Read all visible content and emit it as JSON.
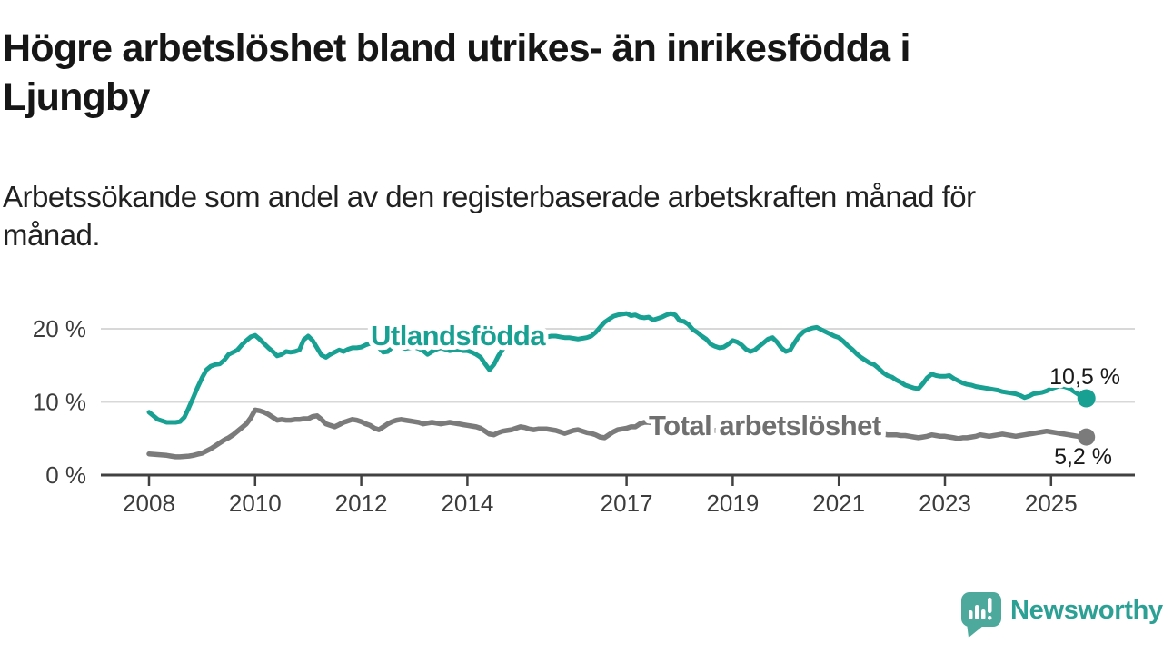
{
  "title": {
    "text": "Högre arbetslöshet bland utrikes- än inrikesfödda i Ljungby",
    "lines": [
      "Högre arbetslöshet bland utrikes- än inrikesfödda i",
      "Ljungby"
    ]
  },
  "subtitle": {
    "text": "Arbetssökande som andel av den registerbaserade arbetskraften månad för månad.",
    "lines": [
      "Arbetssökande som andel av den registerbaserade arbetskraften månad för",
      "månad."
    ]
  },
  "branding": {
    "name": "Newsworthy",
    "logo_color": "#4CA99C",
    "text_color": "#2CA094"
  },
  "chart_data": {
    "type": "line",
    "title": "Högre arbetslöshet bland utrikes- än inrikesfödda i Ljungby",
    "ylabel": "",
    "xlabel": "",
    "grid": "horizontal",
    "ylim": [
      0,
      22.5
    ],
    "x_range_years": [
      2008.0,
      2025.67
    ],
    "y_ticks": [
      {
        "value": 0,
        "label": "0 %"
      },
      {
        "value": 10,
        "label": "10 %"
      },
      {
        "value": 20,
        "label": "20 %"
      }
    ],
    "x_ticks": [
      {
        "year": 2008,
        "label": "2008"
      },
      {
        "year": 2010,
        "label": "2010"
      },
      {
        "year": 2012,
        "label": "2012"
      },
      {
        "year": 2014,
        "label": "2014"
      },
      {
        "year": 2017,
        "label": "2017"
      },
      {
        "year": 2019,
        "label": "2019"
      },
      {
        "year": 2021,
        "label": "2021"
      },
      {
        "year": 2023,
        "label": "2023"
      },
      {
        "year": 2025,
        "label": "2025"
      }
    ],
    "colors": {
      "grid": "#d8d8d8",
      "axis": "#414141"
    },
    "series": [
      {
        "name": "Utlandsfödda",
        "color": "#18A193",
        "end_label": "10,5 %",
        "end_value": 10.5,
        "start_year": 2008,
        "step_months": 1,
        "values": [
          8.6,
          8.1,
          7.6,
          7.4,
          7.2,
          7.2,
          7.2,
          7.3,
          7.9,
          9.2,
          10.6,
          12.0,
          13.3,
          14.4,
          14.9,
          15.1,
          15.2,
          15.7,
          16.5,
          16.8,
          17.1,
          17.8,
          18.4,
          18.9,
          19.1,
          18.6,
          18.0,
          17.4,
          16.9,
          16.3,
          16.5,
          16.9,
          16.8,
          16.9,
          17.1,
          18.5,
          19.0,
          18.4,
          17.4,
          16.4,
          16.1,
          16.5,
          16.8,
          17.1,
          16.9,
          17.2,
          17.4,
          17.4,
          17.5,
          17.8,
          18.0,
          17.8,
          17.4,
          16.8,
          16.9,
          17.5,
          17.8,
          17.5,
          17.3,
          17.4,
          17.5,
          17.3,
          17.0,
          16.5,
          16.9,
          17.2,
          17.4,
          17.2,
          17.0,
          17.1,
          17.2,
          17.0,
          17.0,
          16.8,
          16.5,
          16.1,
          15.2,
          14.4,
          15.1,
          16.3,
          17.2,
          18.0,
          18.2,
          18.4,
          18.8,
          18.9,
          19.0,
          19.0,
          19.0,
          18.9,
          18.9,
          19.0,
          19.0,
          18.9,
          18.8,
          18.8,
          18.7,
          18.6,
          18.7,
          18.8,
          19.0,
          19.5,
          20.2,
          20.9,
          21.3,
          21.7,
          21.9,
          22.0,
          22.1,
          21.8,
          21.9,
          21.6,
          21.5,
          21.6,
          21.2,
          21.4,
          21.6,
          21.9,
          22.1,
          21.9,
          21.1,
          21.0,
          20.6,
          19.9,
          19.5,
          19.0,
          18.6,
          17.9,
          17.6,
          17.4,
          17.5,
          17.9,
          18.4,
          18.2,
          17.8,
          17.2,
          16.9,
          17.1,
          17.6,
          18.1,
          18.6,
          18.8,
          18.2,
          17.4,
          16.9,
          17.1,
          18.1,
          19.0,
          19.6,
          19.9,
          20.1,
          20.2,
          19.9,
          19.6,
          19.3,
          19.0,
          18.8,
          18.3,
          17.7,
          17.2,
          16.6,
          16.1,
          15.7,
          15.3,
          15.1,
          14.6,
          14.0,
          13.6,
          13.4,
          13.0,
          12.7,
          12.3,
          12.1,
          11.9,
          11.8,
          12.5,
          13.3,
          13.8,
          13.6,
          13.5,
          13.5,
          13.6,
          13.2,
          12.9,
          12.6,
          12.4,
          12.3,
          12.1,
          12.0,
          11.9,
          11.8,
          11.7,
          11.6,
          11.4,
          11.3,
          11.2,
          11.1,
          10.9,
          10.6,
          10.8,
          11.1,
          11.2,
          11.3,
          11.5,
          11.8,
          12.0,
          12.2,
          12.1,
          11.9,
          11.5,
          11.1,
          10.7,
          10.5
        ]
      },
      {
        "name": "Total arbetslöshet",
        "color": "#7B7B7B",
        "end_label": "5,2 %",
        "end_value": 5.2,
        "start_year": 2008,
        "step_months": 1,
        "values": [
          2.9,
          2.85,
          2.8,
          2.75,
          2.7,
          2.6,
          2.5,
          2.5,
          2.55,
          2.6,
          2.7,
          2.85,
          3.0,
          3.3,
          3.6,
          4.0,
          4.4,
          4.8,
          5.1,
          5.5,
          6.0,
          6.5,
          7.0,
          7.8,
          8.9,
          8.8,
          8.6,
          8.3,
          7.9,
          7.5,
          7.6,
          7.5,
          7.5,
          7.6,
          7.6,
          7.7,
          7.7,
          8.0,
          8.1,
          7.6,
          7.0,
          6.8,
          6.6,
          6.9,
          7.2,
          7.4,
          7.6,
          7.5,
          7.3,
          7.0,
          6.8,
          6.4,
          6.2,
          6.6,
          7.0,
          7.3,
          7.5,
          7.6,
          7.5,
          7.4,
          7.3,
          7.2,
          7.0,
          7.1,
          7.2,
          7.1,
          7.0,
          7.1,
          7.2,
          7.1,
          7.0,
          6.9,
          6.8,
          6.7,
          6.6,
          6.4,
          6.0,
          5.6,
          5.5,
          5.8,
          6.0,
          6.1,
          6.2,
          6.4,
          6.6,
          6.5,
          6.3,
          6.2,
          6.3,
          6.3,
          6.3,
          6.2,
          6.1,
          5.9,
          5.7,
          5.9,
          6.1,
          6.2,
          6.0,
          5.8,
          5.7,
          5.5,
          5.2,
          5.1,
          5.5,
          5.9,
          6.2,
          6.3,
          6.4,
          6.6,
          6.6,
          7.0,
          7.2,
          7.2,
          7.1,
          7.0,
          6.9,
          6.8,
          6.7,
          6.6,
          6.6,
          6.5,
          6.4,
          6.4,
          6.3,
          6.2,
          6.2,
          6.1,
          6.1,
          6.0,
          6.0,
          6.0,
          6.0,
          5.9,
          5.9,
          5.9,
          6.0,
          6.0,
          6.0,
          6.1,
          6.1,
          6.1,
          6.2,
          6.2,
          6.2,
          6.3,
          6.6,
          6.8,
          7.0,
          7.0,
          7.0,
          6.9,
          6.9,
          6.8,
          6.7,
          6.6,
          6.5,
          6.4,
          6.3,
          6.2,
          6.0,
          5.9,
          5.8,
          5.8,
          5.7,
          5.7,
          5.6,
          5.5,
          5.5,
          5.5,
          5.4,
          5.4,
          5.3,
          5.2,
          5.1,
          5.2,
          5.3,
          5.5,
          5.4,
          5.3,
          5.3,
          5.2,
          5.1,
          5.0,
          5.1,
          5.1,
          5.2,
          5.3,
          5.5,
          5.4,
          5.3,
          5.4,
          5.5,
          5.6,
          5.5,
          5.4,
          5.3,
          5.4,
          5.5,
          5.6,
          5.7,
          5.8,
          5.9,
          6.0,
          5.9,
          5.8,
          5.7,
          5.6,
          5.5,
          5.4,
          5.3,
          5.2,
          5.2
        ]
      }
    ]
  }
}
